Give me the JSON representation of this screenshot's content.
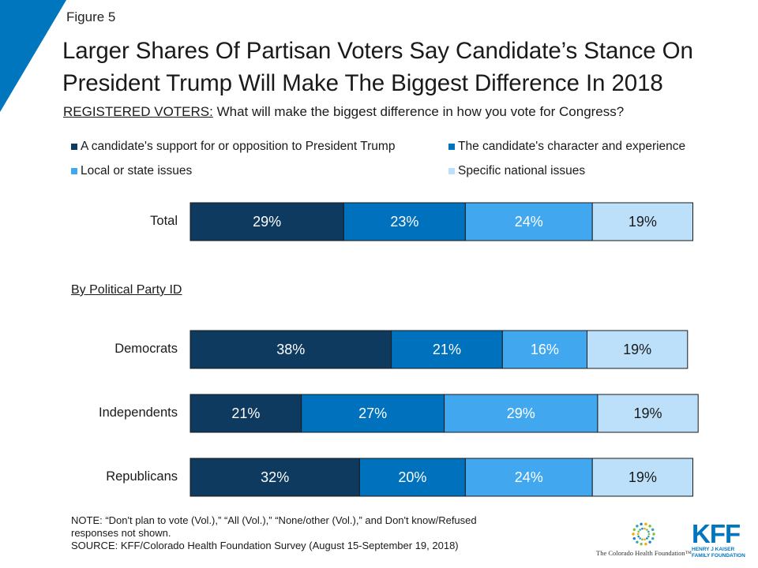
{
  "figure_label": "Figure 5",
  "title_line1": "Larger Shares Of Partisan Voters Say Candidate’s Stance On",
  "title_line2": "President Trump Will Make The Biggest Difference In 2018",
  "subtitle_prefix": "REGISTERED VOTERS:",
  "subtitle_text": " What will make the biggest difference in how you vote for Congress?",
  "section_label": "By Political Party ID",
  "note_line1": "NOTE: “Don't plan to vote (Vol.),” “All (Vol.),” “None/other (Vol.),” and Don't know/Refused",
  "note_line2": "responses not shown.",
  "source_line": "SOURCE: KFF/Colorado Health Foundation Survey (August 15-September 19, 2018)",
  "logo_cf_text": "The Colorado Health Foundation™",
  "logo_kff_text": "KFF",
  "logo_kff_sub1": "HENRY J KAISER",
  "logo_kff_sub2": "FAMILY FOUNDATION",
  "colors": {
    "series1": "#0f3a5f",
    "series2": "#0071bc",
    "series3": "#41a8f0",
    "series4": "#bde0fa",
    "corner": "#0076bf"
  },
  "chart_data": {
    "type": "bar",
    "orientation": "horizontal-stacked",
    "categories": [
      "Total",
      "Democrats",
      "Independents",
      "Republicans"
    ],
    "series": [
      {
        "name": "A candidate's support for or opposition to President Trump",
        "values": [
          29,
          38,
          21,
          32
        ]
      },
      {
        "name": "The candidate's character and experience",
        "values": [
          23,
          21,
          27,
          20
        ]
      },
      {
        "name": "Local or state issues",
        "values": [
          24,
          16,
          29,
          24
        ]
      },
      {
        "name": "Specific national issues",
        "values": [
          19,
          19,
          19,
          19
        ]
      }
    ],
    "legend_position": "top",
    "grid": false,
    "data_label_suffix": "%"
  }
}
